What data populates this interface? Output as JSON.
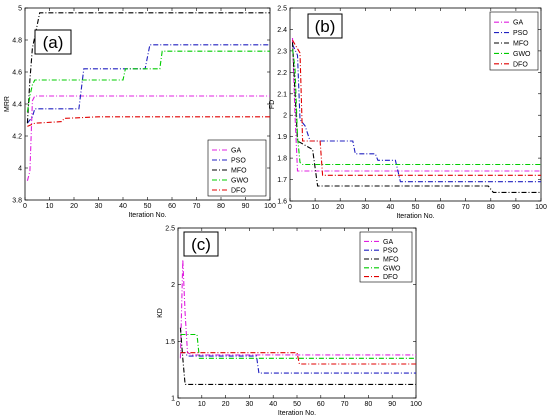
{
  "chart_data": [
    {
      "type": "line",
      "panel_label": "(a)",
      "xlabel": "Iteration No.",
      "ylabel": "MRR",
      "xlim": [
        0,
        100
      ],
      "ylim": [
        3.8,
        5.0
      ],
      "xticks": [
        "0",
        "10",
        "20",
        "30",
        "40",
        "50",
        "60",
        "70",
        "80",
        "90",
        "100"
      ],
      "yticks": [
        "3.8",
        "4",
        "4.2",
        "4.4",
        "4.6",
        "4.8",
        "5"
      ],
      "legend_position": "bottom-right",
      "series": [
        {
          "name": "GA",
          "color": "#e020e0",
          "dash": "5,2,1,2",
          "points": [
            [
              1,
              3.92
            ],
            [
              2,
              3.98
            ],
            [
              3,
              4.42
            ],
            [
              4,
              4.45
            ],
            [
              100,
              4.45
            ]
          ]
        },
        {
          "name": "PSO",
          "color": "#2020c0",
          "dash": "5,2,1,2",
          "points": [
            [
              1,
              4.28
            ],
            [
              3,
              4.32
            ],
            [
              4,
              4.37
            ],
            [
              22,
              4.37
            ],
            [
              24,
              4.62
            ],
            [
              49,
              4.62
            ],
            [
              51,
              4.77
            ],
            [
              100,
              4.77
            ]
          ]
        },
        {
          "name": "MFO",
          "color": "#000000",
          "dash": "5,2,1,2",
          "points": [
            [
              1,
              4.28
            ],
            [
              2,
              4.55
            ],
            [
              3,
              4.75
            ],
            [
              4,
              4.82
            ],
            [
              6,
              4.97
            ],
            [
              100,
              4.97
            ]
          ]
        },
        {
          "name": "GWO",
          "color": "#00cc00",
          "dash": "5,2,1,2",
          "points": [
            [
              1,
              4.35
            ],
            [
              2,
              4.45
            ],
            [
              3,
              4.52
            ],
            [
              4,
              4.55
            ],
            [
              40,
              4.55
            ],
            [
              41,
              4.62
            ],
            [
              55,
              4.62
            ],
            [
              56,
              4.73
            ],
            [
              100,
              4.73
            ]
          ]
        },
        {
          "name": "DFO",
          "color": "#e00000",
          "dash": "5,2,1,2",
          "points": [
            [
              1,
              4.26
            ],
            [
              4,
              4.28
            ],
            [
              15,
              4.29
            ],
            [
              16,
              4.31
            ],
            [
              30,
              4.32
            ],
            [
              100,
              4.32
            ]
          ]
        }
      ]
    },
    {
      "type": "line",
      "panel_label": "(b)",
      "xlabel": "Iteration No.",
      "ylabel": "FD",
      "xlim": [
        0,
        100
      ],
      "ylim": [
        1.6,
        2.5
      ],
      "xticks": [
        "0",
        "10",
        "20",
        "30",
        "40",
        "50",
        "60",
        "70",
        "80",
        "90",
        "100"
      ],
      "yticks": [
        "1.6",
        "1.7",
        "1.8",
        "1.9",
        "2",
        "2.1",
        "2.2",
        "2.3",
        "2.4",
        "2.5"
      ],
      "legend_position": "top-right",
      "series": [
        {
          "name": "GA",
          "color": "#e020e0",
          "dash": "5,2,1,2",
          "points": [
            [
              1,
              2.36
            ],
            [
              2,
              2.0
            ],
            [
              3,
              1.74
            ],
            [
              100,
              1.74
            ]
          ]
        },
        {
          "name": "PSO",
          "color": "#2020c0",
          "dash": "5,2,1,2",
          "points": [
            [
              1,
              2.33
            ],
            [
              3,
              2.28
            ],
            [
              4,
              1.98
            ],
            [
              6,
              1.95
            ],
            [
              8,
              1.88
            ],
            [
              25,
              1.88
            ],
            [
              26,
              1.82
            ],
            [
              34,
              1.82
            ],
            [
              35,
              1.79
            ],
            [
              42,
              1.79
            ],
            [
              44,
              1.69
            ],
            [
              100,
              1.69
            ]
          ]
        },
        {
          "name": "MFO",
          "color": "#000000",
          "dash": "5,2,1,2",
          "points": [
            [
              1,
              2.34
            ],
            [
              3,
              1.88
            ],
            [
              9,
              1.84
            ],
            [
              11,
              1.67
            ],
            [
              79,
              1.67
            ],
            [
              81,
              1.64
            ],
            [
              100,
              1.64
            ]
          ]
        },
        {
          "name": "GWO",
          "color": "#00cc00",
          "dash": "5,2,1,2",
          "points": [
            [
              1,
              2.31
            ],
            [
              2,
              2.22
            ],
            [
              3,
              1.9
            ],
            [
              4,
              1.78
            ],
            [
              5,
              1.77
            ],
            [
              100,
              1.77
            ]
          ]
        },
        {
          "name": "DFO",
          "color": "#e00000",
          "dash": "5,2,1,2",
          "points": [
            [
              1,
              2.35
            ],
            [
              4,
              2.29
            ],
            [
              5,
              1.88
            ],
            [
              12,
              1.88
            ],
            [
              13,
              1.72
            ],
            [
              100,
              1.72
            ]
          ]
        }
      ]
    },
    {
      "type": "line",
      "panel_label": "(c)",
      "xlabel": "Iteration No.",
      "ylabel": "KD",
      "xlim": [
        0,
        100
      ],
      "ylim": [
        1.0,
        2.5
      ],
      "xticks": [
        "0",
        "10",
        "20",
        "30",
        "40",
        "50",
        "60",
        "70",
        "80",
        "90",
        "100"
      ],
      "yticks": [
        "1",
        "1.5",
        "2",
        "2.5"
      ],
      "legend_position": "top-right",
      "series": [
        {
          "name": "GA",
          "color": "#e020e0",
          "dash": "5,2,1,2",
          "points": [
            [
              1,
              1.35
            ],
            [
              2,
              2.22
            ],
            [
              3,
              1.75
            ],
            [
              4,
              1.4
            ],
            [
              6,
              1.38
            ],
            [
              100,
              1.38
            ]
          ]
        },
        {
          "name": "PSO",
          "color": "#2020c0",
          "dash": "5,2,1,2",
          "points": [
            [
              1,
              1.4
            ],
            [
              3,
              1.4
            ],
            [
              4,
              1.37
            ],
            [
              33,
              1.37
            ],
            [
              34,
              1.22
            ],
            [
              100,
              1.22
            ]
          ]
        },
        {
          "name": "MFO",
          "color": "#000000",
          "dash": "5,2,1,2",
          "points": [
            [
              1,
              1.62
            ],
            [
              2,
              1.35
            ],
            [
              3,
              1.12
            ],
            [
              100,
              1.12
            ]
          ]
        },
        {
          "name": "GWO",
          "color": "#00cc00",
          "dash": "5,2,1,2",
          "points": [
            [
              1,
              1.56
            ],
            [
              8,
              1.56
            ],
            [
              9,
              1.35
            ],
            [
              100,
              1.35
            ]
          ]
        },
        {
          "name": "DFO",
          "color": "#e00000",
          "dash": "5,2,1,2",
          "points": [
            [
              1,
              1.4
            ],
            [
              50,
              1.4
            ],
            [
              51,
              1.3
            ],
            [
              100,
              1.3
            ]
          ]
        }
      ]
    }
  ]
}
